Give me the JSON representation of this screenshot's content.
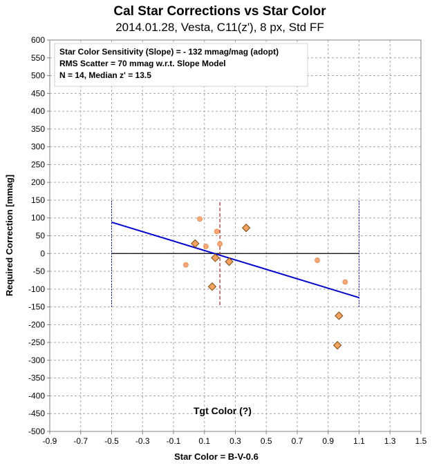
{
  "chart_data": {
    "type": "scatter",
    "title": "Cal Star Corrections vs Star Color",
    "subtitle": "2014.01.28, Vesta, C11(z'), 8 px, Std FF",
    "xlabel": "Star Color = B-V-0.6",
    "ylabel": "Required Correction [mmag]",
    "xlim": [
      -0.9,
      1.5
    ],
    "ylim": [
      -500,
      600
    ],
    "x_ticks": [
      -0.9,
      -0.7,
      -0.5,
      -0.3,
      -0.1,
      0.1,
      0.3,
      0.5,
      0.7,
      0.9,
      1.1,
      1.3,
      1.5
    ],
    "x_tick_labels": [
      "-0.9",
      "-0.7",
      "-0.5",
      "-0.3",
      "-0.1",
      "0.1",
      "0.3",
      "0.5",
      "0.7",
      "0.9",
      "1.1",
      "1.3",
      "1.5"
    ],
    "y_ticks": [
      -500,
      -450,
      -400,
      -350,
      -300,
      -250,
      -200,
      -150,
      -100,
      -50,
      0,
      50,
      100,
      150,
      200,
      250,
      300,
      350,
      400,
      450,
      500,
      550,
      600
    ],
    "y_tick_labels": [
      "-500",
      "-450",
      "-400",
      "-350",
      "-300",
      "-250",
      "-200",
      "-150",
      "-100",
      "-50",
      "0",
      "50",
      "100",
      "150",
      "200",
      "250",
      "300",
      "350",
      "400",
      "450",
      "500",
      "550",
      "600"
    ],
    "grid": true,
    "stats_lines": [
      "Star Color Sensitivity (Slope)  =  - 132 mmag/mag (adopt)",
      "RMS Scatter = 70 mmag  w.r.t. Slope Model",
      "N = 14,  Median z' = 13.5"
    ],
    "annotation": "Tgt Color (?)",
    "target_color_x": 0.2,
    "target_color_range": [
      -145,
      145
    ],
    "series": [
      {
        "marker": "diamond",
        "color": "#f4a460",
        "stroke": "#7a4a10",
        "points": [
          {
            "x": 0.04,
            "y": 28
          },
          {
            "x": 0.17,
            "y": -12
          },
          {
            "x": 0.26,
            "y": -23
          },
          {
            "x": 0.37,
            "y": 72
          },
          {
            "x": 0.15,
            "y": -93
          },
          {
            "x": 0.97,
            "y": -175
          },
          {
            "x": 0.96,
            "y": -258
          }
        ]
      },
      {
        "marker": "circle",
        "color": "#f5a87a",
        "stroke": "#e8884a",
        "points": [
          {
            "x": 0.07,
            "y": 97
          },
          {
            "x": 0.18,
            "y": 62
          },
          {
            "x": 0.2,
            "y": 27
          },
          {
            "x": 0.11,
            "y": 20
          },
          {
            "x": -0.02,
            "y": -32
          },
          {
            "x": 0.83,
            "y": -19
          },
          {
            "x": 1.01,
            "y": -80
          }
        ]
      }
    ],
    "fit_line": {
      "color": "#0000cc",
      "points": [
        {
          "x": -0.5,
          "y": 88
        },
        {
          "x": 1.1,
          "y": -124
        }
      ]
    },
    "zero_line": {
      "color": "#000000",
      "x_range": [
        -0.5,
        1.1
      ],
      "y": 0
    },
    "range_markers": {
      "color": "#000080",
      "x": [
        -0.5,
        1.1
      ],
      "y_range": [
        -150,
        150
      ]
    },
    "target_line_color": "#a52a2a"
  }
}
